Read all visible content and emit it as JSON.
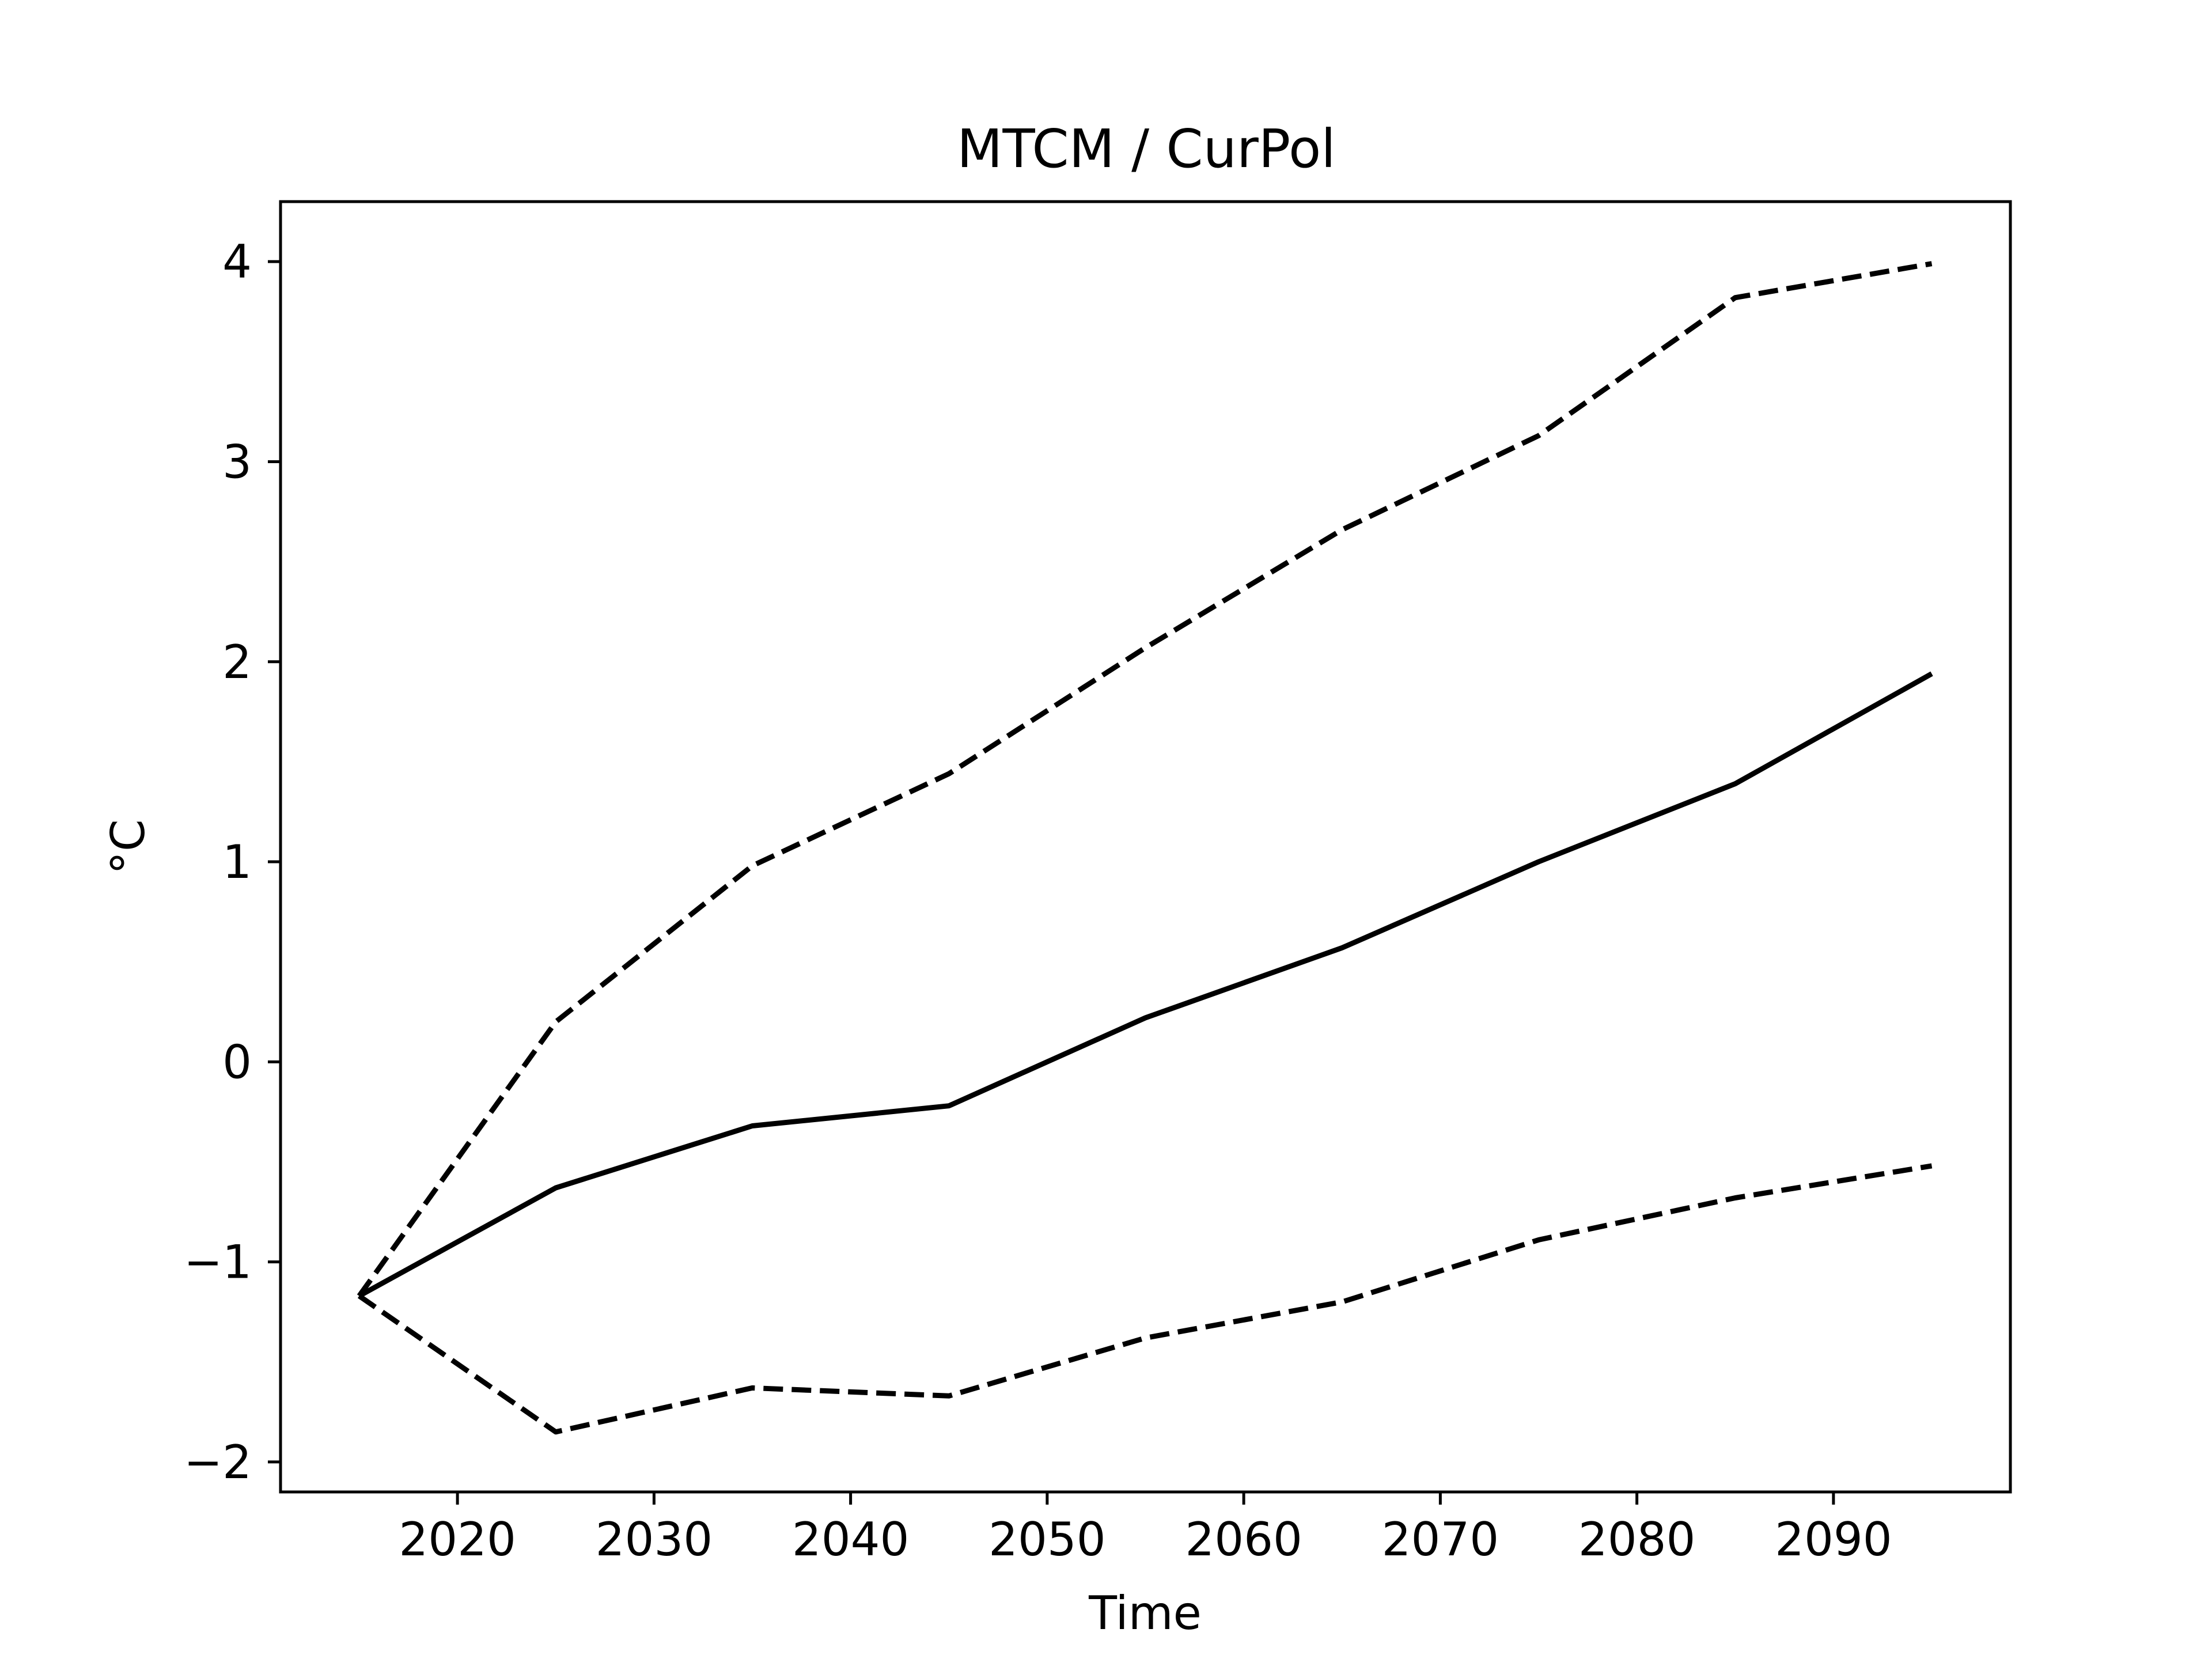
{
  "chart_data": {
    "type": "line",
    "title": "MTCM / CurPol",
    "xlabel": "Time",
    "ylabel": "°C",
    "xlim": [
      2011,
      2099
    ],
    "ylim": [
      -2.15,
      4.3
    ],
    "xticks": [
      2020,
      2030,
      2040,
      2050,
      2060,
      2070,
      2080,
      2090
    ],
    "xtick_labels": [
      "2020",
      "2030",
      "2040",
      "2050",
      "2060",
      "2070",
      "2080",
      "2090"
    ],
    "yticks": [
      -2,
      -1,
      0,
      1,
      2,
      3,
      4
    ],
    "ytick_labels": [
      "−2",
      "−1",
      "0",
      "1",
      "2",
      "3",
      "4"
    ],
    "x": [
      2015,
      2025,
      2035,
      2045,
      2055,
      2065,
      2075,
      2085,
      2095
    ],
    "series": [
      {
        "style": "solid",
        "color": "#000000",
        "values": [
          -1.17,
          -0.63,
          -0.32,
          -0.22,
          0.22,
          0.57,
          1.0,
          1.39,
          1.94
        ]
      },
      {
        "style": "dashed",
        "color": "#000000",
        "values": [
          -1.17,
          0.2,
          0.98,
          1.44,
          2.07,
          2.66,
          3.13,
          3.82,
          3.99
        ]
      },
      {
        "style": "dashed",
        "color": "#000000",
        "values": [
          -1.17,
          -1.85,
          -1.63,
          -1.67,
          -1.38,
          -1.2,
          -0.89,
          -0.68,
          -0.52
        ]
      }
    ],
    "grid": false,
    "legend": "none"
  }
}
